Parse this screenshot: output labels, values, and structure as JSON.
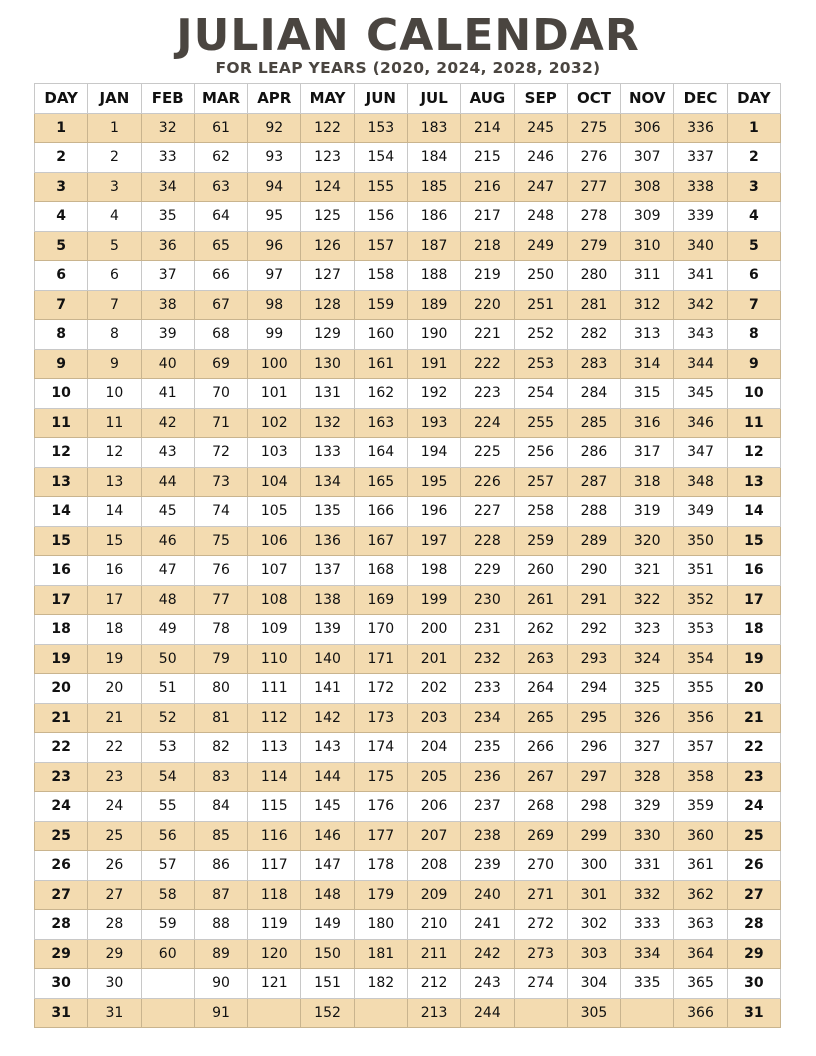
{
  "title": "JULIAN CALENDAR",
  "subtitle": "FOR LEAP YEARS (2020, 2024, 2028, 2032)",
  "colors": {
    "title": "#4a4540",
    "stripe": "#f3dbb0"
  },
  "headers": [
    "DAY",
    "JAN",
    "FEB",
    "MAR",
    "APR",
    "MAY",
    "JUN",
    "JUL",
    "AUG",
    "SEP",
    "OCT",
    "NOV",
    "DEC",
    "DAY"
  ],
  "rows": [
    {
      "day": "1",
      "values": [
        "1",
        "32",
        "61",
        "92",
        "122",
        "153",
        "183",
        "214",
        "245",
        "275",
        "306",
        "336"
      ]
    },
    {
      "day": "2",
      "values": [
        "2",
        "33",
        "62",
        "93",
        "123",
        "154",
        "184",
        "215",
        "246",
        "276",
        "307",
        "337"
      ]
    },
    {
      "day": "3",
      "values": [
        "3",
        "34",
        "63",
        "94",
        "124",
        "155",
        "185",
        "216",
        "247",
        "277",
        "308",
        "338"
      ]
    },
    {
      "day": "4",
      "values": [
        "4",
        "35",
        "64",
        "95",
        "125",
        "156",
        "186",
        "217",
        "248",
        "278",
        "309",
        "339"
      ]
    },
    {
      "day": "5",
      "values": [
        "5",
        "36",
        "65",
        "96",
        "126",
        "157",
        "187",
        "218",
        "249",
        "279",
        "310",
        "340"
      ]
    },
    {
      "day": "6",
      "values": [
        "6",
        "37",
        "66",
        "97",
        "127",
        "158",
        "188",
        "219",
        "250",
        "280",
        "311",
        "341"
      ]
    },
    {
      "day": "7",
      "values": [
        "7",
        "38",
        "67",
        "98",
        "128",
        "159",
        "189",
        "220",
        "251",
        "281",
        "312",
        "342"
      ]
    },
    {
      "day": "8",
      "values": [
        "8",
        "39",
        "68",
        "99",
        "129",
        "160",
        "190",
        "221",
        "252",
        "282",
        "313",
        "343"
      ]
    },
    {
      "day": "9",
      "values": [
        "9",
        "40",
        "69",
        "100",
        "130",
        "161",
        "191",
        "222",
        "253",
        "283",
        "314",
        "344"
      ]
    },
    {
      "day": "10",
      "values": [
        "10",
        "41",
        "70",
        "101",
        "131",
        "162",
        "192",
        "223",
        "254",
        "284",
        "315",
        "345"
      ]
    },
    {
      "day": "11",
      "values": [
        "11",
        "42",
        "71",
        "102",
        "132",
        "163",
        "193",
        "224",
        "255",
        "285",
        "316",
        "346"
      ]
    },
    {
      "day": "12",
      "values": [
        "12",
        "43",
        "72",
        "103",
        "133",
        "164",
        "194",
        "225",
        "256",
        "286",
        "317",
        "347"
      ]
    },
    {
      "day": "13",
      "values": [
        "13",
        "44",
        "73",
        "104",
        "134",
        "165",
        "195",
        "226",
        "257",
        "287",
        "318",
        "348"
      ]
    },
    {
      "day": "14",
      "values": [
        "14",
        "45",
        "74",
        "105",
        "135",
        "166",
        "196",
        "227",
        "258",
        "288",
        "319",
        "349"
      ]
    },
    {
      "day": "15",
      "values": [
        "15",
        "46",
        "75",
        "106",
        "136",
        "167",
        "197",
        "228",
        "259",
        "289",
        "320",
        "350"
      ]
    },
    {
      "day": "16",
      "values": [
        "16",
        "47",
        "76",
        "107",
        "137",
        "168",
        "198",
        "229",
        "260",
        "290",
        "321",
        "351"
      ]
    },
    {
      "day": "17",
      "values": [
        "17",
        "48",
        "77",
        "108",
        "138",
        "169",
        "199",
        "230",
        "261",
        "291",
        "322",
        "352"
      ]
    },
    {
      "day": "18",
      "values": [
        "18",
        "49",
        "78",
        "109",
        "139",
        "170",
        "200",
        "231",
        "262",
        "292",
        "323",
        "353"
      ]
    },
    {
      "day": "19",
      "values": [
        "19",
        "50",
        "79",
        "110",
        "140",
        "171",
        "201",
        "232",
        "263",
        "293",
        "324",
        "354"
      ]
    },
    {
      "day": "20",
      "values": [
        "20",
        "51",
        "80",
        "111",
        "141",
        "172",
        "202",
        "233",
        "264",
        "294",
        "325",
        "355"
      ]
    },
    {
      "day": "21",
      "values": [
        "21",
        "52",
        "81",
        "112",
        "142",
        "173",
        "203",
        "234",
        "265",
        "295",
        "326",
        "356"
      ]
    },
    {
      "day": "22",
      "values": [
        "22",
        "53",
        "82",
        "113",
        "143",
        "174",
        "204",
        "235",
        "266",
        "296",
        "327",
        "357"
      ]
    },
    {
      "day": "23",
      "values": [
        "23",
        "54",
        "83",
        "114",
        "144",
        "175",
        "205",
        "236",
        "267",
        "297",
        "328",
        "358"
      ]
    },
    {
      "day": "24",
      "values": [
        "24",
        "55",
        "84",
        "115",
        "145",
        "176",
        "206",
        "237",
        "268",
        "298",
        "329",
        "359"
      ]
    },
    {
      "day": "25",
      "values": [
        "25",
        "56",
        "85",
        "116",
        "146",
        "177",
        "207",
        "238",
        "269",
        "299",
        "330",
        "360"
      ]
    },
    {
      "day": "26",
      "values": [
        "26",
        "57",
        "86",
        "117",
        "147",
        "178",
        "208",
        "239",
        "270",
        "300",
        "331",
        "361"
      ]
    },
    {
      "day": "27",
      "values": [
        "27",
        "58",
        "87",
        "118",
        "148",
        "179",
        "209",
        "240",
        "271",
        "301",
        "332",
        "362"
      ]
    },
    {
      "day": "28",
      "values": [
        "28",
        "59",
        "88",
        "119",
        "149",
        "180",
        "210",
        "241",
        "272",
        "302",
        "333",
        "363"
      ]
    },
    {
      "day": "29",
      "values": [
        "29",
        "60",
        "89",
        "120",
        "150",
        "181",
        "211",
        "242",
        "273",
        "303",
        "334",
        "364"
      ]
    },
    {
      "day": "30",
      "values": [
        "30",
        "",
        "90",
        "121",
        "151",
        "182",
        "212",
        "243",
        "274",
        "304",
        "335",
        "365"
      ]
    },
    {
      "day": "31",
      "values": [
        "31",
        "",
        "91",
        "",
        "152",
        "",
        "213",
        "244",
        "",
        "305",
        "",
        "366"
      ]
    }
  ]
}
